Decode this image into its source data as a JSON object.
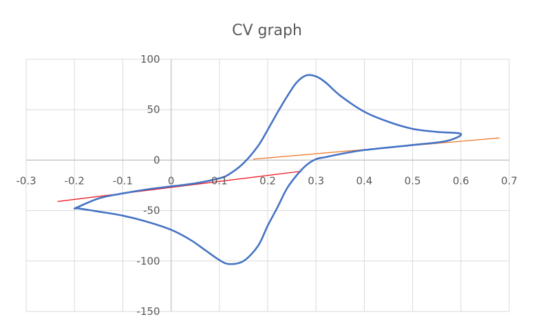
{
  "chart_data": {
    "type": "scatter",
    "title": "CV graph",
    "xlabel": "",
    "ylabel": "",
    "xlim": [
      -0.3,
      0.7
    ],
    "ylim": [
      -150,
      100
    ],
    "x_ticks": [
      "-0.3",
      "-0.2",
      "-0.1",
      "0",
      "0.1",
      "0.2",
      "0.3",
      "0.4",
      "0.5",
      "0.6",
      "0.7"
    ],
    "y_ticks": [
      "100",
      "50",
      "0",
      "-50",
      "-100",
      "-150"
    ],
    "grid": true,
    "legend": "none",
    "series": [
      {
        "color": "#4472c4",
        "style": "smooth-line",
        "x": [
          -0.2,
          -0.15,
          -0.1,
          -0.05,
          0.0,
          0.05,
          0.1,
          0.12,
          0.15,
          0.18,
          0.2,
          0.22,
          0.24,
          0.26,
          0.28,
          0.3,
          0.32,
          0.35,
          0.4,
          0.45,
          0.5,
          0.55,
          0.6,
          0.57,
          0.5,
          0.4,
          0.35,
          0.32,
          0.3,
          0.28,
          0.26,
          0.24,
          0.22,
          0.2,
          0.18,
          0.15,
          0.12,
          0.1,
          0.07,
          0.04,
          0.0,
          -0.05,
          -0.1,
          -0.15,
          -0.19,
          -0.2
        ],
        "y": [
          -48,
          -38,
          -33,
          -29,
          -26,
          -23,
          -18,
          -14,
          -3,
          14,
          30,
          47,
          63,
          77,
          84,
          83,
          77,
          64,
          48,
          38,
          31,
          28,
          26,
          19,
          15,
          10,
          6,
          3,
          1,
          -5,
          -15,
          -28,
          -47,
          -65,
          -85,
          -100,
          -103,
          -99,
          -89,
          -79,
          -69,
          -61,
          -55,
          -51,
          -48,
          -48
        ]
      },
      {
        "color": "#ed1c24",
        "style": "line",
        "x": [
          -0.235,
          0.27
        ],
        "y": [
          -41,
          -11
        ]
      },
      {
        "color": "#ed7d31",
        "style": "line",
        "x": [
          0.17,
          0.68
        ],
        "y": [
          1,
          22
        ]
      }
    ]
  }
}
